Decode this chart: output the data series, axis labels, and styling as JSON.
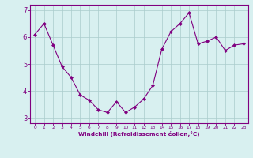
{
  "x": [
    0,
    1,
    2,
    3,
    4,
    5,
    6,
    7,
    8,
    9,
    10,
    11,
    12,
    13,
    14,
    15,
    16,
    17,
    18,
    19,
    20,
    21,
    22,
    23
  ],
  "y": [
    6.1,
    6.5,
    5.7,
    4.9,
    4.5,
    3.85,
    3.65,
    3.3,
    3.2,
    3.6,
    3.2,
    3.4,
    3.7,
    4.2,
    5.55,
    6.2,
    6.5,
    6.9,
    5.75,
    5.85,
    6.0,
    5.5,
    5.7,
    5.75
  ],
  "xlabel": "Windchill (Refroidissement éolien,°C)",
  "ylim": [
    2.8,
    7.2
  ],
  "xlim": [
    -0.5,
    23.5
  ],
  "yticks": [
    3,
    4,
    5,
    6,
    7
  ],
  "xticks": [
    0,
    1,
    2,
    3,
    4,
    5,
    6,
    7,
    8,
    9,
    10,
    11,
    12,
    13,
    14,
    15,
    16,
    17,
    18,
    19,
    20,
    21,
    22,
    23
  ],
  "line_color": "#800080",
  "marker_color": "#800080",
  "bg_color": "#d8f0f0",
  "grid_color": "#aacccc",
  "axis_color": "#800080",
  "tick_color": "#800080",
  "label_color": "#800080"
}
